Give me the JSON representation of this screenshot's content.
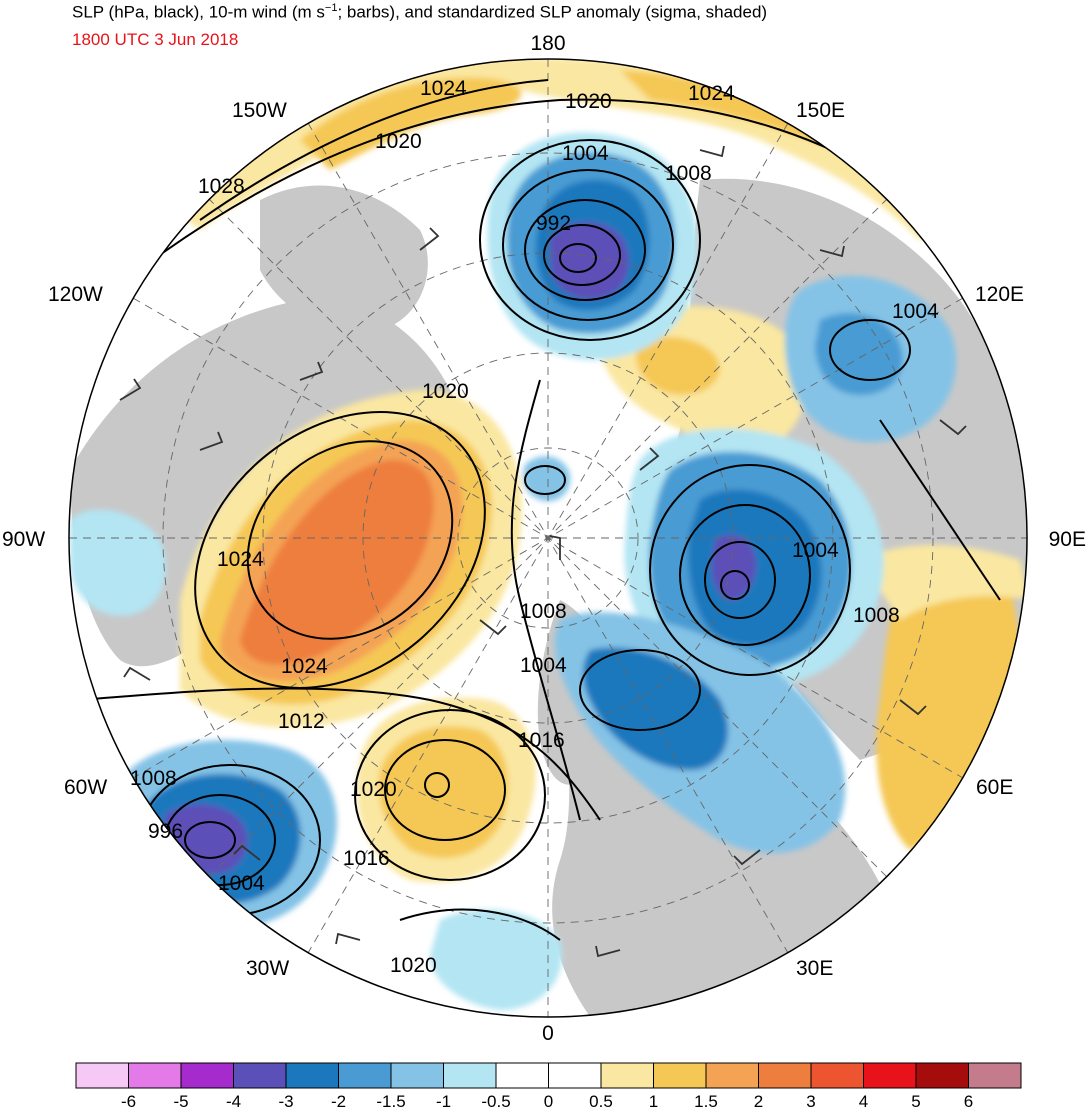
{
  "header": {
    "title_pre": "SLP (hPa, black), 10-m wind (m s",
    "title_sup": "−1",
    "title_post": "; barbs), and standardized SLP anomaly (sigma, shaded)",
    "timestamp": "1800 UTC 3 Jun 2018",
    "timestamp_color": "#e8131a"
  },
  "map": {
    "projection": "north-polar-stereographic",
    "longitude_labels": {
      "top": "180",
      "bottom": "0",
      "left": "90W",
      "right": "90E",
      "nw_upper": "150W",
      "nw_lower": "120W",
      "ne_upper": "150E",
      "ne_lower": "120E",
      "sw_upper": "60W",
      "sw_lower": "30W",
      "se_upper": "60E",
      "se_lower": "30E"
    },
    "isobar_labels": [
      "1024",
      "1020",
      "1024",
      "1020",
      "1028",
      "1004",
      "1008",
      "992",
      "1004",
      "1020",
      "1024",
      "1004",
      "1008",
      "1024",
      "1008",
      "1004",
      "1012",
      "1016",
      "1008",
      "1020",
      "996",
      "1016",
      "1004",
      "1020"
    ],
    "anomaly_centers": [
      {
        "name": "north-pacific-low",
        "sign": "negative",
        "sigma": -4
      },
      {
        "name": "siberian-low",
        "sign": "negative",
        "sigma": -4
      },
      {
        "name": "greenland-high",
        "sign": "positive",
        "sigma": 2.5
      },
      {
        "name": "north-atlantic-high",
        "sign": "positive",
        "sigma": 1.5
      },
      {
        "name": "labrador-sea-low",
        "sign": "negative",
        "sigma": -4
      }
    ]
  },
  "colorbar": {
    "colors": [
      "#f5c8f5",
      "#e37ae8",
      "#a52bcc",
      "#5b4fb8",
      "#1c78bd",
      "#4a9bd3",
      "#84c3e6",
      "#b3e5f3",
      "#ffffff",
      "#ffffff",
      "#fae7a1",
      "#f5c855",
      "#f4a355",
      "#ee7e3e",
      "#ed5530",
      "#e8131a",
      "#a50d0d",
      "#c47c8c"
    ],
    "ticks": [
      "-6",
      "-5",
      "-4",
      "-3",
      "-2",
      "-1.5",
      "-1",
      "-0.5",
      "0",
      "0.5",
      "1",
      "1.5",
      "2",
      "3",
      "4",
      "5",
      "6"
    ]
  }
}
